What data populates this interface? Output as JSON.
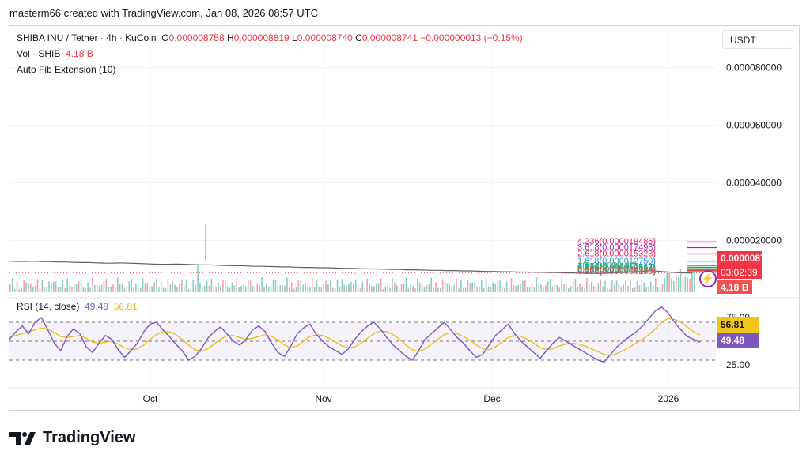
{
  "header": {
    "text": "masterm66 created with TradingView.com, Jan 08, 2026 08:57 UTC"
  },
  "legend": {
    "symbol": "SHIBA INU / Tether · 4h · KuCoin",
    "o_label": "O",
    "o_value": "0.000008758",
    "h_label": "H",
    "h_value": "0.000008819",
    "l_label": "L",
    "l_value": "0.000008740",
    "c_label": "C",
    "c_value": "0.000008741",
    "change": "−0.000000013 (−0.15%)",
    "vol_label": "Vol · SHIB",
    "vol_value": "4.18 B",
    "indicator": "Auto Fib Extension (10)",
    "rsi_label": "RSI (14, close)",
    "rsi_value": "49.48",
    "rsi_ma_value": "56.81"
  },
  "currency_button": "USDT",
  "price_badge": {
    "price": "0.000008741",
    "countdown": "03:02:39",
    "volume": "4.18 B"
  },
  "rsi_badges": {
    "ma": "56.81",
    "rsi": "49.48"
  },
  "branding": {
    "name": "TradingView"
  },
  "colors": {
    "up": "#26a69a",
    "down": "#ef5350",
    "rsi": "#7e57c2",
    "rsi_ma": "#f0b800",
    "fib": "#e91e63",
    "grid": "#f0f3fa"
  },
  "chart_data": [
    {
      "type": "line",
      "title": "SHIBA INU / Tether · 4h · KuCoin",
      "yticks": [
        "0.000080000",
        "0.000060000",
        "0.000040000",
        "0.000020000"
      ],
      "ytick_values": [
        8e-05,
        6e-05,
        4e-05,
        2e-05
      ],
      "ylim": [
        2e-06,
        8.7e-05
      ],
      "xticks": [
        "Oct",
        "Nov",
        "Dec",
        "2026"
      ],
      "series": [
        {
          "values": [
            1.28e-05,
            1.27e-05,
            1.27e-05,
            1.28e-05,
            1.27e-05,
            1.26e-05,
            1.25e-05,
            1.25e-05,
            1.24e-05,
            1.23e-05,
            1.23e-05,
            1.22e-05,
            1.21e-05,
            1.21e-05,
            1.22e-05,
            1.21e-05,
            1.2e-05,
            1.19e-05,
            1.18e-05,
            1.17e-05,
            1.17e-05,
            1.18e-05,
            1.17e-05,
            1.16e-05,
            1.15e-05,
            1.15e-05,
            1.14e-05,
            1.13e-05,
            1.12e-05,
            1.12e-05,
            1.11e-05,
            1.1e-05,
            1.1e-05,
            1.09e-05,
            1.08e-05,
            1.08e-05,
            1.07e-05,
            1.06e-05,
            1.06e-05,
            1.05e-05,
            1.05e-05,
            1.04e-05,
            1.03e-05,
            1.03e-05,
            1.02e-05,
            1.01e-05,
            1.01e-05,
            1e-05,
            9.9e-06,
            9.9e-06,
            9.8e-06,
            9.8e-06,
            9.7e-06,
            9.6e-06,
            9.6e-06,
            9.5e-06,
            9.5e-06,
            9.4e-06,
            9.4e-06,
            9.3e-06,
            9.2e-06,
            9.2e-06,
            9.1e-06,
            9.1e-06,
            9e-06,
            9e-06,
            8.9e-06,
            8.9e-06,
            8.8e-06,
            8.8e-06,
            8.7e-06,
            8.7e-06,
            8.6e-06,
            8.6e-06,
            8.5e-06,
            8.6e-06,
            8.7e-06,
            8.8e-06,
            8.9e-06,
            9.1e-06,
            9.3e-06,
            9.5e-06,
            9.2e-06,
            9e-06,
            8.8e-06,
            8.7e-06,
            8.7e-06
          ]
        }
      ],
      "price_line": 8.741e-06,
      "fib_levels": [
        {
          "label": "4.236(0.000019486)",
          "value": 1.9486e-05
        },
        {
          "label": "3.618(0.000017498)",
          "value": 1.7498e-05
        },
        {
          "label": "2.618(0.000015323)",
          "value": 1.5323e-05
        },
        {
          "label": "1.618(0.000012750)",
          "value": 1.275e-05
        },
        {
          "label": "1(0.000011143)",
          "value": 1.1143e-05
        },
        {
          "label": "0.786(0.000010587)",
          "value": 1.0587e-05
        },
        {
          "label": "0.618(0.000010154)",
          "value": 1.0154e-05
        },
        {
          "label": "0.5(0.000009849)",
          "value": 9.849e-06
        },
        {
          "label": "0.382(0.000009543)",
          "value": 9.543e-06
        },
        {
          "label": "0.236(0.000009168)",
          "value": 9.168e-06
        }
      ]
    },
    {
      "type": "line",
      "title": "RSI (14, close)",
      "ylim": [
        10,
        90
      ],
      "yticks": [
        "75.00",
        "25.00"
      ],
      "ytick_values": [
        75,
        25
      ],
      "bands": [
        70,
        50,
        30
      ],
      "xticks": [
        "Oct",
        "Nov",
        "Dec",
        "2026"
      ],
      "series": [
        {
          "name": "RSI",
          "values": [
            52,
            60,
            66,
            58,
            70,
            75,
            62,
            48,
            40,
            55,
            63,
            58,
            44,
            38,
            48,
            56,
            52,
            41,
            33,
            40,
            48,
            60,
            68,
            70,
            62,
            55,
            47,
            40,
            30,
            34,
            42,
            53,
            60,
            65,
            58,
            50,
            46,
            52,
            62,
            66,
            60,
            48,
            38,
            34,
            45,
            58,
            64,
            68,
            57,
            50,
            44,
            40,
            36,
            42,
            52,
            60,
            66,
            70,
            63,
            54,
            46,
            40,
            34,
            30,
            40,
            52,
            58,
            64,
            70,
            62,
            54,
            48,
            40,
            33,
            36,
            46,
            56,
            62,
            68,
            58,
            50,
            44,
            38,
            32,
            40,
            48,
            54,
            50,
            46,
            42,
            38,
            34,
            30,
            28,
            36,
            44,
            50,
            55,
            60,
            66,
            74,
            82,
            86,
            80,
            70,
            62,
            55,
            52,
            49
          ]
        },
        {
          "name": "MA",
          "values": [
            55,
            56,
            58,
            60,
            62,
            64,
            63,
            59,
            55,
            54,
            55,
            56,
            53,
            49,
            48,
            49,
            50,
            47,
            43,
            41,
            42,
            46,
            52,
            57,
            60,
            60,
            57,
            52,
            46,
            41,
            39,
            42,
            47,
            52,
            56,
            56,
            54,
            52,
            53,
            55,
            57,
            55,
            51,
            46,
            43,
            45,
            50,
            55,
            57,
            56,
            53,
            49,
            45,
            43,
            44,
            48,
            53,
            58,
            61,
            60,
            57,
            52,
            46,
            41,
            39,
            42,
            47,
            52,
            57,
            59,
            58,
            55,
            51,
            46,
            42,
            41,
            44,
            49,
            54,
            56,
            55,
            52,
            48,
            43,
            41,
            42,
            45,
            47,
            48,
            47,
            45,
            42,
            39,
            36,
            35,
            37,
            40,
            44,
            48,
            52,
            57,
            63,
            70,
            74,
            73,
            70,
            65,
            60,
            56.81
          ]
        }
      ]
    }
  ]
}
